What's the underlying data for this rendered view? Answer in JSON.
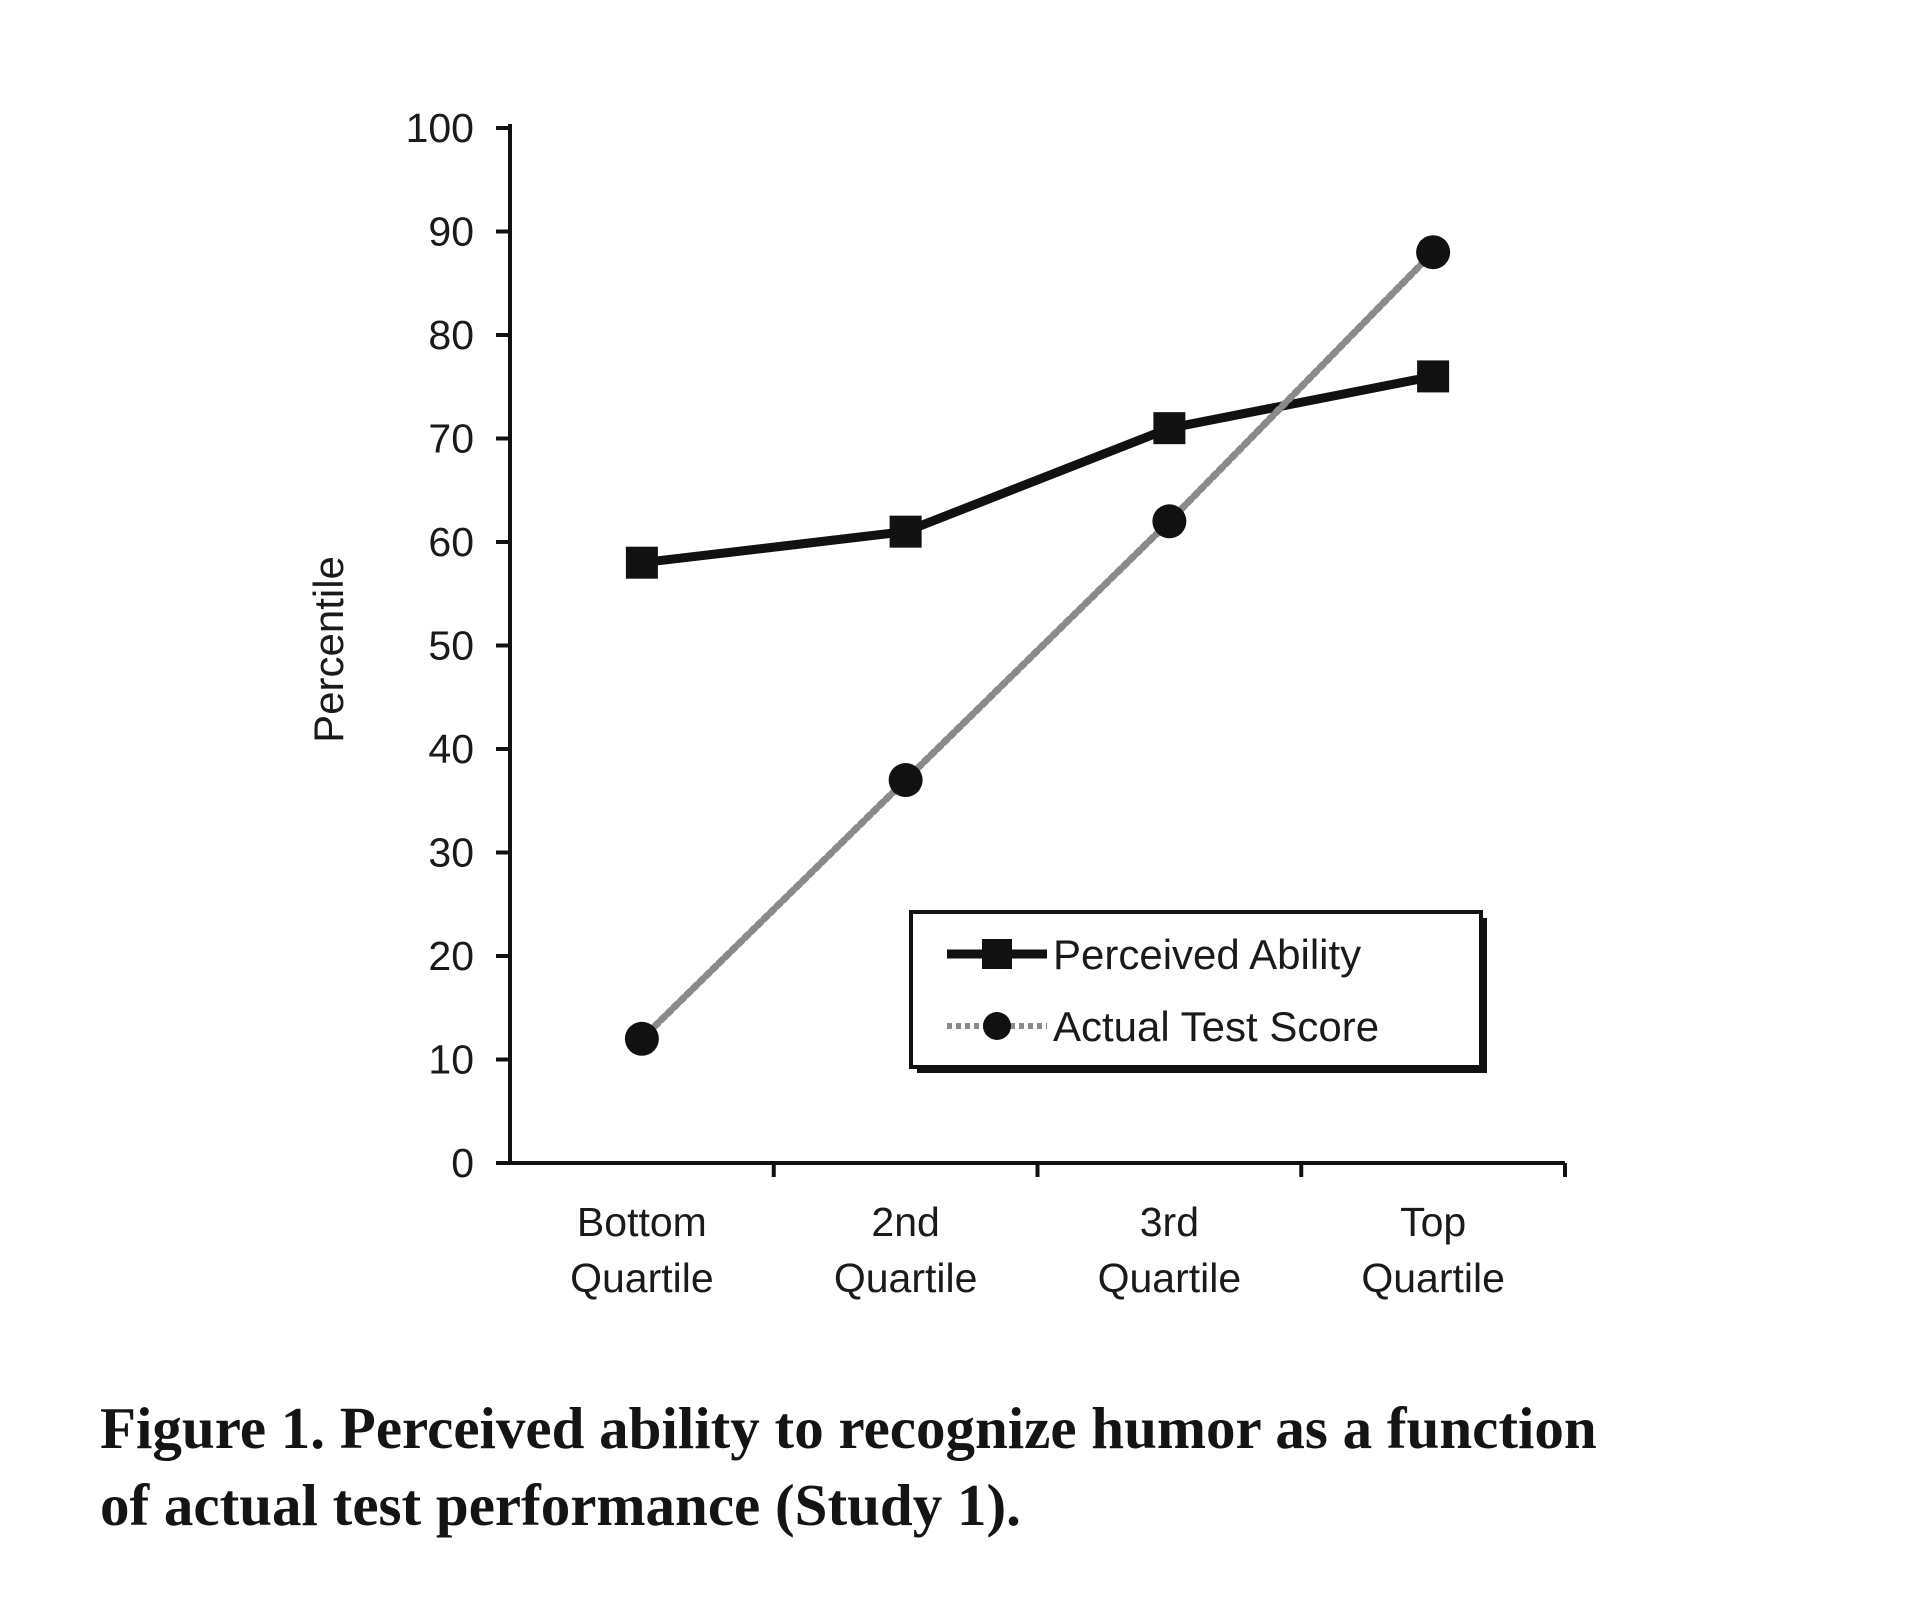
{
  "chart_data": {
    "type": "line",
    "categories": [
      "Bottom Quartile",
      "2nd Quartile",
      "3rd Quartile",
      "Top Quartile"
    ],
    "category_lines": [
      [
        "Bottom",
        "Quartile"
      ],
      [
        "2nd",
        "Quartile"
      ],
      [
        "3rd",
        "Quartile"
      ],
      [
        "Top",
        "Quartile"
      ]
    ],
    "series": [
      {
        "name": "Perceived Ability",
        "values": [
          58,
          61,
          71,
          76
        ],
        "marker": "square",
        "style": "solid",
        "color": "#111111"
      },
      {
        "name": "Actual Test Score",
        "values": [
          12,
          37,
          62,
          88
        ],
        "marker": "circle",
        "style": "dotted",
        "color": "#8a8a8a"
      }
    ],
    "title": "",
    "xlabel": "",
    "ylabel": "Percentile",
    "ylim": [
      0,
      100
    ],
    "yticks": [
      0,
      10,
      20,
      30,
      40,
      50,
      60,
      70,
      80,
      90,
      100
    ],
    "grid": false,
    "legend_position": "bottom-right"
  },
  "caption": {
    "line1": "Figure 1. Perceived ability to recognize humor as a function",
    "line2": "of actual test performance (Study 1)."
  }
}
